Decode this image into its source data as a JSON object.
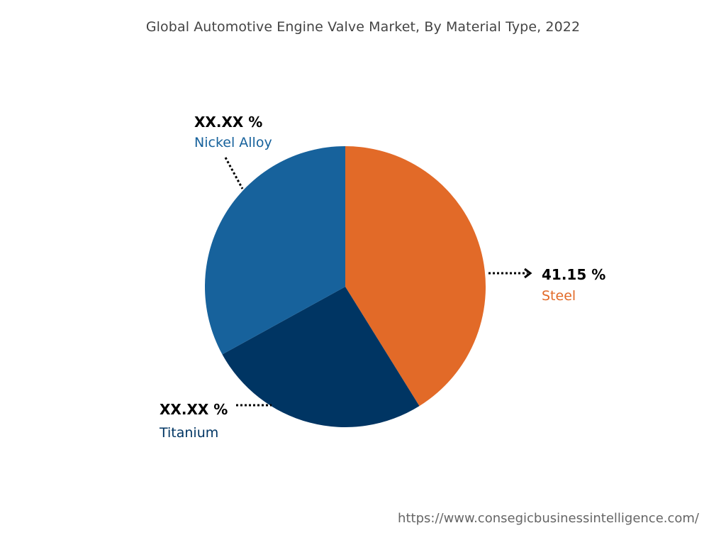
{
  "chart_data": {
    "type": "pie",
    "title": "Global Automotive Engine Valve Market, By Material Type, 2022",
    "slices": [
      {
        "label": "Steel",
        "value_label": "41.15 %",
        "value": 41.15,
        "color": "#E26A28"
      },
      {
        "label": "Titanium",
        "value_label": "XX.XX %",
        "value": 25.85,
        "color": "#003563"
      },
      {
        "label": "Nickel Alloy",
        "value_label": "XX.XX %",
        "value": 33.0,
        "color": "#17629C"
      }
    ]
  },
  "footer": {
    "url": "https://www.consegicbusinessintelligence.com/"
  }
}
